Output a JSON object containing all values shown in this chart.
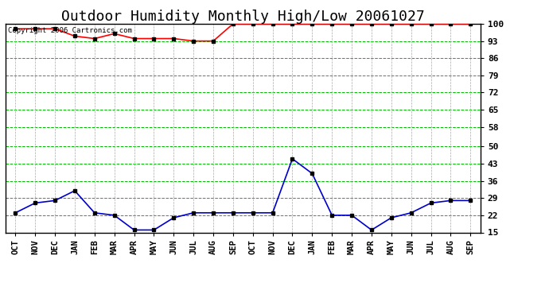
{
  "title": "Outdoor Humidity Monthly High/Low 20061027",
  "copyright": "Copyright 2006 Cartronics.com",
  "x_labels": [
    "OCT",
    "NOV",
    "DEC",
    "JAN",
    "FEB",
    "MAR",
    "APR",
    "MAY",
    "JUN",
    "JUL",
    "AUG",
    "SEP",
    "OCT",
    "NOV",
    "DEC",
    "JAN",
    "FEB",
    "MAR",
    "APR",
    "MAY",
    "JUN",
    "JUL",
    "AUG",
    "SEP"
  ],
  "high_values": [
    98,
    98,
    98,
    95,
    94,
    96,
    94,
    94,
    94,
    93,
    93,
    100,
    100,
    100,
    100,
    100,
    100,
    100,
    100,
    100,
    100,
    100,
    100,
    100
  ],
  "low_values": [
    23,
    27,
    28,
    32,
    23,
    22,
    16,
    16,
    21,
    23,
    23,
    23,
    23,
    23,
    45,
    39,
    22,
    22,
    16,
    21,
    23,
    27,
    28,
    28
  ],
  "high_color": "#ff0000",
  "low_color": "#0000cc",
  "marker_color": "#000000",
  "bg_color": "#ffffff",
  "plot_bg_color": "#ffffff",
  "grid_color": "#00bb00",
  "vgrid_color": "#aaaaaa",
  "ytick_color": "#00bb00",
  "border_color": "#000000",
  "ylim": [
    15,
    100
  ],
  "yticks": [
    15,
    22,
    29,
    36,
    43,
    50,
    58,
    65,
    72,
    79,
    86,
    93,
    100
  ],
  "title_fontsize": 13,
  "copyright_fontsize": 6.5,
  "tick_fontsize": 7.5,
  "ytick_fontsize": 8
}
